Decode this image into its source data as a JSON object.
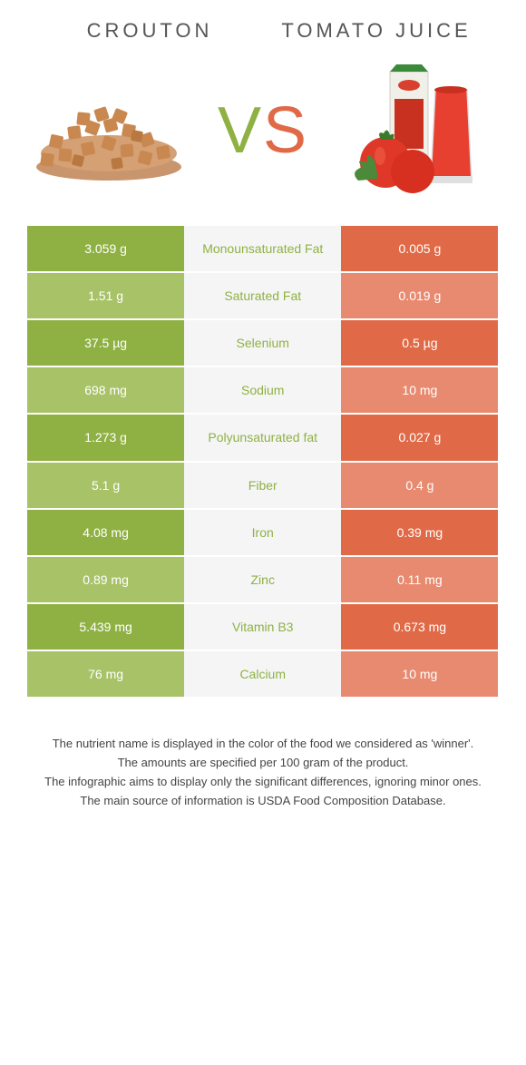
{
  "header": {
    "food1_title": "CROUTON",
    "food2_title": "TOMATO JUICE",
    "vs_v": "V",
    "vs_s": "S"
  },
  "colors": {
    "green": "#8fb143",
    "green_light": "#a8c267",
    "red": "#e06a47",
    "red_light": "#e88a6f",
    "mid_bg": "#f5f5f5"
  },
  "rows": [
    {
      "left": "3.059 g",
      "label": "Monounsaturated Fat",
      "right": "0.005 g",
      "winner": "left"
    },
    {
      "left": "1.51 g",
      "label": "Saturated Fat",
      "right": "0.019 g",
      "winner": "left"
    },
    {
      "left": "37.5 µg",
      "label": "Selenium",
      "right": "0.5 µg",
      "winner": "left"
    },
    {
      "left": "698 mg",
      "label": "Sodium",
      "right": "10 mg",
      "winner": "left"
    },
    {
      "left": "1.273 g",
      "label": "Polyunsaturated fat",
      "right": "0.027 g",
      "winner": "left"
    },
    {
      "left": "5.1 g",
      "label": "Fiber",
      "right": "0.4 g",
      "winner": "left"
    },
    {
      "left": "4.08 mg",
      "label": "Iron",
      "right": "0.39 mg",
      "winner": "left"
    },
    {
      "left": "0.89 mg",
      "label": "Zinc",
      "right": "0.11 mg",
      "winner": "left"
    },
    {
      "left": "5.439 mg",
      "label": "Vitamin B3",
      "right": "0.673 mg",
      "winner": "left"
    },
    {
      "left": "76 mg",
      "label": "Calcium",
      "right": "10 mg",
      "winner": "left"
    }
  ],
  "footer": {
    "line1": "The nutrient name is displayed in the color of the food we considered as 'winner'.",
    "line2": "The amounts are specified per 100 gram of the product.",
    "line3": "The infographic aims to display only the significant differences, ignoring minor ones.",
    "line4": "The main source of information is USDA Food Composition Database."
  }
}
